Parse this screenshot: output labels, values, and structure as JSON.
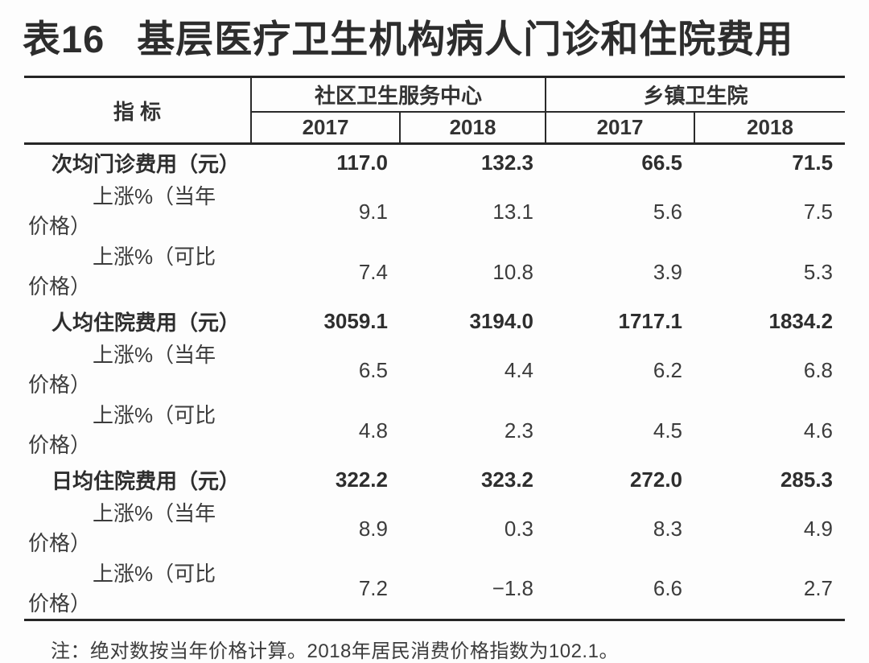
{
  "title": {
    "prefix": "表16",
    "text": "基层医疗卫生机构病人门诊和住院费用"
  },
  "table": {
    "indicator_header": "指 标",
    "groups": [
      {
        "label": "社区卫生服务中心",
        "years": [
          "2017",
          "2018"
        ]
      },
      {
        "label": "乡镇卫生院",
        "years": [
          "2017",
          "2018"
        ]
      }
    ],
    "rows": [
      {
        "label": "次均门诊费用（元）",
        "bold": true,
        "values": [
          "117.0",
          "132.3",
          "66.5",
          "71.5"
        ]
      },
      {
        "label": "上涨%（当年价格）",
        "bold": false,
        "values": [
          "9.1",
          "13.1",
          "5.6",
          "7.5"
        ]
      },
      {
        "label": "上涨%（可比价格）",
        "bold": false,
        "values": [
          "7.4",
          "10.8",
          "3.9",
          "5.3"
        ]
      },
      {
        "label": "人均住院费用（元）",
        "bold": true,
        "values": [
          "3059.1",
          "3194.0",
          "1717.1",
          "1834.2"
        ]
      },
      {
        "label": "上涨%（当年价格）",
        "bold": false,
        "values": [
          "6.5",
          "4.4",
          "6.2",
          "6.8"
        ]
      },
      {
        "label": "上涨%（可比价格）",
        "bold": false,
        "values": [
          "4.8",
          "2.3",
          "4.5",
          "4.6"
        ]
      },
      {
        "label": "日均住院费用（元）",
        "bold": true,
        "values": [
          "322.2",
          "323.2",
          "272.0",
          "285.3"
        ]
      },
      {
        "label": "上涨%（当年价格）",
        "bold": false,
        "values": [
          "8.9",
          "0.3",
          "8.3",
          "4.9"
        ]
      },
      {
        "label": "上涨%（可比价格）",
        "bold": false,
        "values": [
          "7.2",
          "−1.8",
          "6.6",
          "2.7"
        ]
      }
    ],
    "note": "注：绝对数按当年价格计算。2018年居民消费价格指数为102.1。"
  }
}
